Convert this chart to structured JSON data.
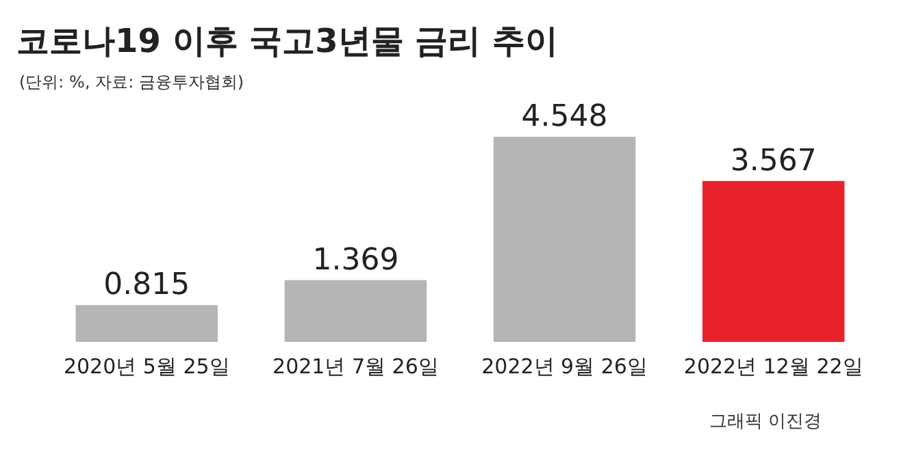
{
  "chart_data": {
    "type": "bar",
    "title": "코로나19 이후 국고3년물 금리 추이",
    "subtitle": "(단위: %, 자료: 금융투자협회)",
    "categories": [
      "2020년 5월 25일",
      "2021년 7월 26일",
      "2022년 9월 26일",
      "2022년 12월 22일"
    ],
    "values": [
      0.815,
      1.369,
      4.548,
      3.567
    ],
    "colors": [
      "#b5b5b5",
      "#b5b5b5",
      "#b5b5b5",
      "#e8212b"
    ],
    "data_labels": true,
    "annotations": [
      "그래픽 이진경"
    ]
  }
}
